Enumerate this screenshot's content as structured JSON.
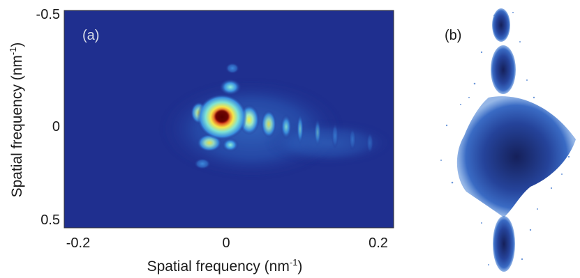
{
  "panel_a": {
    "label": "(a)",
    "y_axis_label": "Spatial frequency (nm",
    "y_axis_label_sup": "-1",
    "y_axis_label_end": ")",
    "x_axis_label": "Spatial frequency (nm",
    "x_axis_label_sup": "-1",
    "x_axis_label_end": ")",
    "x_ticks": [
      "-0.2",
      "0",
      "0.2"
    ],
    "y_ticks": [
      "-0.5",
      "0",
      "0.5"
    ]
  },
  "panel_b": {
    "label": "(b)"
  },
  "chart_data": {
    "type": "heatmap",
    "title": "",
    "xlabel": "Spatial frequency (nm-1)",
    "ylabel": "Spatial frequency (nm-1)",
    "xlim": [
      -0.23,
      0.22
    ],
    "ylim": [
      -0.5,
      0.5
    ],
    "x_ticks": [
      -0.2,
      0,
      0.2
    ],
    "y_ticks": [
      -0.5,
      0,
      0.5
    ],
    "colormap": [
      "#1a2a8a",
      "#2f7fd6",
      "#6fe0d8",
      "#f4ef4a",
      "#ee2f1e",
      "#6a0000"
    ],
    "background_color": "#1f2f8f"
  }
}
